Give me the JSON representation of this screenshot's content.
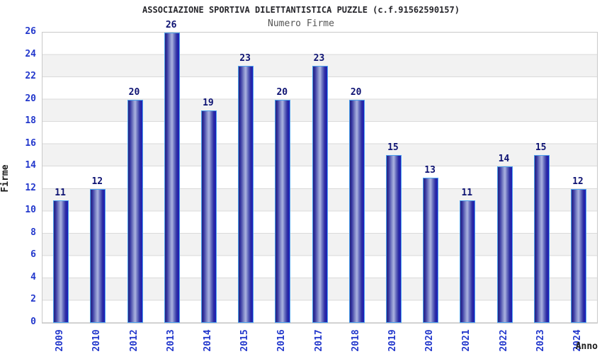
{
  "header": {
    "title": "ASSOCIAZIONE SPORTIVA DILETTANTISTICA PUZZLE (c.f.91562590157)",
    "subtitle": "Numero Firme"
  },
  "chart_data": {
    "type": "bar",
    "title": "Numero Firme",
    "categories": [
      "2009",
      "2010",
      "2012",
      "2013",
      "2014",
      "2015",
      "2016",
      "2017",
      "2018",
      "2019",
      "2020",
      "2021",
      "2022",
      "2023",
      "2024"
    ],
    "values": [
      11,
      12,
      20,
      26,
      19,
      23,
      20,
      23,
      20,
      15,
      13,
      11,
      14,
      15,
      12
    ],
    "xlabel": "Anno",
    "ylabel": "Firme",
    "ylim": [
      0,
      26
    ],
    "ytick_step": 2,
    "yticks": [
      0,
      2,
      4,
      6,
      8,
      10,
      12,
      14,
      16,
      18,
      20,
      22,
      24,
      26
    ],
    "grid": "horizontal gridlines with alternating shaded bands every 2 units",
    "legend": "none",
    "colors": {
      "bar_edge": "#4da2ee",
      "bar_dark": "#26267c",
      "bar_light": "#abb2e0",
      "bar_right": "#1d1db8",
      "value_label": "#0d1272",
      "tick_label": "#2338cc",
      "band_shade": "#f2f2f2",
      "gridline": "#dadada",
      "plot_border": "#c9c9c9",
      "title": "#26262b",
      "subtitle": "#555555",
      "axis_title": "#1b1b1b"
    }
  }
}
